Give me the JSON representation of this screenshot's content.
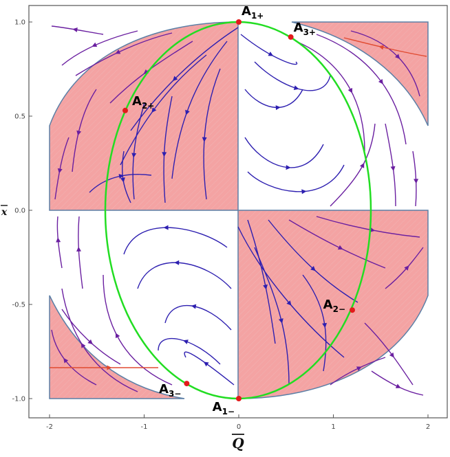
{
  "chart_data": {
    "type": "scatter",
    "title": "",
    "xlabel": "Q",
    "ylabel": "x",
    "xlim": [
      -2.0,
      2.0
    ],
    "ylim": [
      -1.0,
      1.0
    ],
    "grid": false,
    "x_ticks": [
      "-2",
      "-1",
      "0",
      "1",
      "2"
    ],
    "y_ticks": [
      "-1.0",
      "-0.5",
      "0.0",
      "0.5",
      "1.0"
    ],
    "colors": {
      "region_fill": "#f4a3a3",
      "region_stroke": "#5b7fa6",
      "ellipse": "#22dd22",
      "stream_blue": "#2d1fb0",
      "stream_purple": "#6a1fa0",
      "stream_red": "#e04a30",
      "point": "#e21b1b",
      "frame": "#555555"
    },
    "critical_points": [
      {
        "name": "A",
        "sub": "1+",
        "x": 0.0,
        "y": 1.0
      },
      {
        "name": "A",
        "sub": "3+",
        "x": 0.55,
        "y": 0.92
      },
      {
        "name": "A",
        "sub": "2+",
        "x": -1.2,
        "y": 0.53
      },
      {
        "name": "A",
        "sub": "2−",
        "x": 1.2,
        "y": -0.53
      },
      {
        "name": "A",
        "sub": "3−",
        "x": -0.55,
        "y": -0.92
      },
      {
        "name": "A",
        "sub": "1−",
        "x": 0.0,
        "y": -1.0
      }
    ]
  }
}
